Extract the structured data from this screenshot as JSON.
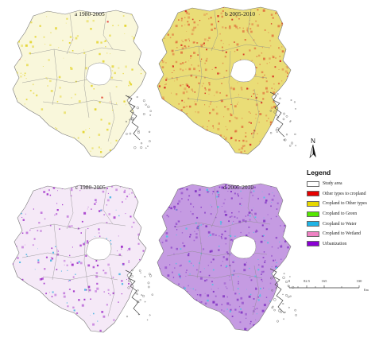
{
  "panels": [
    {
      "id": "a",
      "label": "a 1980-2005",
      "fill_color": "#e8e070",
      "fill_opacity": 0.25,
      "speckle_color": "#e2d21f",
      "speckle_density": 0.25,
      "accent_color": "#e01f1f",
      "accent_density": 0.01
    },
    {
      "id": "b",
      "label": "b 2005-2010",
      "fill_color": "#e3d24a",
      "fill_opacity": 0.75,
      "speckle_color": "#e06b3a",
      "speckle_density": 0.55,
      "accent_color": "#d41616",
      "accent_density": 0.12
    },
    {
      "id": "c",
      "label": "c 1980-2005",
      "fill_color": "#d8a6e0",
      "fill_opacity": 0.25,
      "speckle_color": "#9a20c6",
      "speckle_density": 0.35,
      "accent_color": "#33aee0",
      "accent_density": 0.06
    },
    {
      "id": "d",
      "label": "d 2005-2010",
      "fill_color": "#b27ad8",
      "fill_opacity": 0.75,
      "speckle_color": "#7c2ac0",
      "speckle_density": 0.55,
      "accent_color": "#3ec7e6",
      "accent_density": 0.15
    }
  ],
  "north_arrow": {
    "label": "N"
  },
  "legend": {
    "title": "Legend",
    "items": [
      {
        "label": "Study area",
        "color": "#ffffff"
      },
      {
        "label": "Other types to cropland",
        "color": "#e60000"
      },
      {
        "label": "Cropland to Other types",
        "color": "#e6d800"
      },
      {
        "label": "Cropland to Green",
        "color": "#55e600"
      },
      {
        "label": "Cropland to Water",
        "color": "#1fb4e6"
      },
      {
        "label": "Cropland to Wetland",
        "color": "#ee82c3"
      },
      {
        "label": "Urbanization",
        "color": "#8a00d4"
      }
    ]
  },
  "scalebar": {
    "ticks": [
      "0",
      "82.5",
      "165",
      "330"
    ],
    "tick_values": [
      0,
      82.5,
      165,
      330
    ],
    "unit": "Km"
  }
}
